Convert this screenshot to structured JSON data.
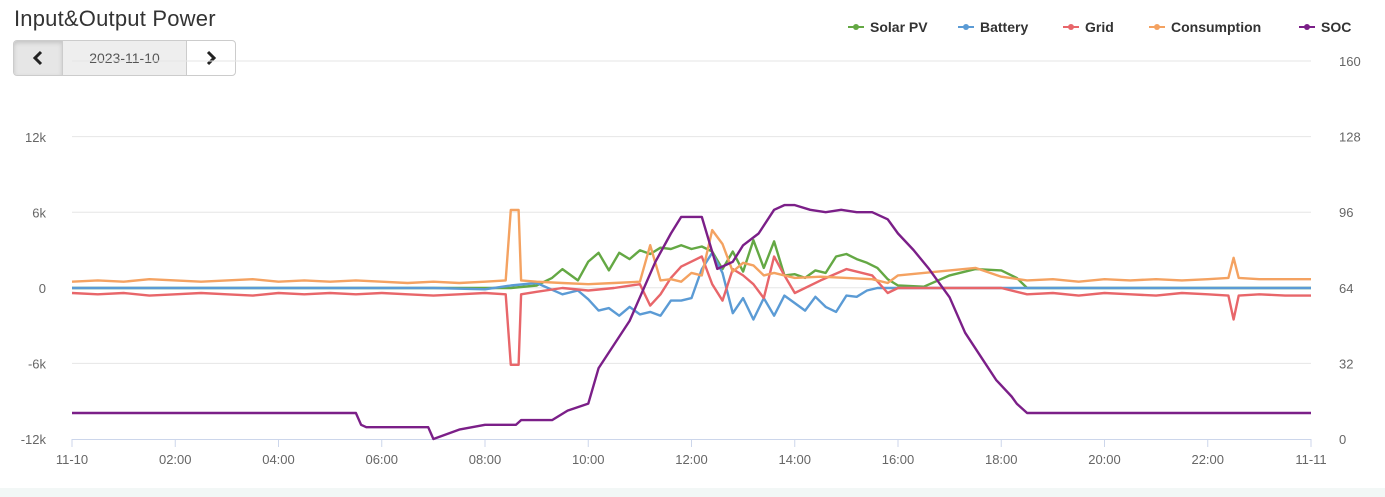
{
  "page": {
    "title": "Input&Output Power"
  },
  "date_nav": {
    "date": "2023-11-10",
    "prev_icon": "chevron-left-icon",
    "next_icon": "chevron-right-icon"
  },
  "chart_data": {
    "type": "line",
    "x_range": [
      0,
      24
    ],
    "x_ticks": [
      "11-10",
      "02:00",
      "04:00",
      "06:00",
      "08:00",
      "10:00",
      "12:00",
      "14:00",
      "16:00",
      "18:00",
      "20:00",
      "22:00",
      "11-11"
    ],
    "y_left": {
      "min": -12000,
      "max": 12000,
      "ticks": [
        -12000,
        -6000,
        0,
        6000,
        12000
      ],
      "tick_labels": [
        "-12k",
        "-6k",
        "0",
        "6k",
        "12k"
      ]
    },
    "y_right": {
      "min": 0,
      "max": 160,
      "ticks": [
        0,
        32,
        64,
        96,
        128,
        160
      ],
      "tick_labels": [
        "0",
        "32",
        "64",
        "96",
        "128",
        "160"
      ]
    },
    "grid": true,
    "legend_position": "top-right",
    "series": [
      {
        "name": "Solar PV",
        "color": "#64a844",
        "axis": "left",
        "x": [
          0,
          8.5,
          9.0,
          9.3,
          9.5,
          9.8,
          10.0,
          10.2,
          10.4,
          10.6,
          10.8,
          11.0,
          11.2,
          11.4,
          11.6,
          11.8,
          12.0,
          12.2,
          12.4,
          12.6,
          12.8,
          13.0,
          13.2,
          13.4,
          13.6,
          13.8,
          14.0,
          14.2,
          14.4,
          14.6,
          14.8,
          15.0,
          15.2,
          15.4,
          15.6,
          15.8,
          16.0,
          16.5,
          17.0,
          17.5,
          18.0,
          18.3,
          18.5,
          24
        ],
        "y": [
          0,
          0,
          200,
          800,
          1500,
          600,
          2100,
          2800,
          1400,
          2800,
          2300,
          3000,
          2700,
          3200,
          3100,
          3400,
          3100,
          3300,
          2900,
          1500,
          2900,
          1300,
          3800,
          1600,
          3700,
          1000,
          1100,
          800,
          1400,
          1200,
          2500,
          2700,
          2300,
          2000,
          1600,
          700,
          200,
          100,
          1000,
          1500,
          1400,
          800,
          0,
          0
        ]
      },
      {
        "name": "Battery",
        "color": "#5b9bd5",
        "axis": "left",
        "x": [
          0,
          7.0,
          8.0,
          8.5,
          9.0,
          9.5,
          9.8,
          10.0,
          10.2,
          10.4,
          10.6,
          10.8,
          11.0,
          11.2,
          11.4,
          11.6,
          11.8,
          12.0,
          12.2,
          12.4,
          12.6,
          12.8,
          13.0,
          13.2,
          13.4,
          13.6,
          13.8,
          14.0,
          14.2,
          14.4,
          14.6,
          14.8,
          15.0,
          15.2,
          15.4,
          15.6,
          15.8,
          16.0,
          16.5,
          17.0,
          17.5,
          18.0,
          18.3,
          18.5,
          24
        ],
        "y": [
          0,
          0,
          -100,
          200,
          400,
          -500,
          -200,
          -900,
          -1800,
          -1600,
          -2200,
          -1500,
          -2100,
          -1900,
          -2200,
          -1000,
          -1000,
          -800,
          1500,
          2800,
          1200,
          -2000,
          -800,
          -2500,
          -800,
          -2200,
          -600,
          -1200,
          -1800,
          -700,
          -1500,
          -1900,
          -600,
          -700,
          -200,
          0,
          0,
          0,
          0,
          0,
          0,
          0,
          0,
          0,
          0
        ]
      },
      {
        "name": "Grid",
        "color": "#e8666a",
        "axis": "left",
        "x": [
          0,
          0.5,
          1.0,
          1.5,
          2.0,
          2.5,
          3.0,
          3.5,
          4.0,
          4.5,
          5.0,
          5.5,
          6.0,
          6.5,
          7.0,
          7.5,
          8.0,
          8.4,
          8.5,
          8.65,
          8.7,
          9.0,
          9.5,
          10.0,
          10.5,
          11.0,
          11.2,
          11.4,
          11.6,
          11.8,
          12.0,
          12.2,
          12.4,
          12.6,
          12.8,
          13.0,
          13.2,
          13.4,
          13.6,
          13.8,
          14.0,
          14.5,
          15.0,
          15.5,
          15.8,
          16.0,
          16.5,
          17.0,
          17.5,
          18.0,
          18.5,
          19.0,
          19.5,
          20.0,
          20.5,
          21.0,
          21.5,
          22.0,
          22.4,
          22.5,
          22.6,
          23.0,
          23.5,
          24
        ],
        "y": [
          -400,
          -500,
          -400,
          -600,
          -500,
          -400,
          -500,
          -600,
          -400,
          -500,
          -400,
          -500,
          -400,
          -500,
          -600,
          -500,
          -400,
          -500,
          -6100,
          -6100,
          -500,
          -300,
          0,
          -200,
          0,
          300,
          -1400,
          -500,
          800,
          1700,
          2100,
          2500,
          300,
          -1000,
          1500,
          1000,
          300,
          -800,
          2500,
          1000,
          -400,
          600,
          1500,
          1000,
          -400,
          0,
          0,
          0,
          0,
          0,
          -500,
          -400,
          -600,
          -400,
          -500,
          -600,
          -400,
          -500,
          -600,
          -2500,
          -600,
          -500,
          -600,
          -600
        ]
      },
      {
        "name": "Consumption",
        "color": "#f4a261",
        "axis": "left",
        "x": [
          0,
          0.5,
          1.0,
          1.5,
          2.0,
          2.5,
          3.0,
          3.5,
          4.0,
          4.5,
          5.0,
          5.5,
          6.0,
          6.5,
          7.0,
          7.5,
          8.0,
          8.4,
          8.5,
          8.65,
          8.7,
          9.0,
          9.5,
          10.0,
          10.5,
          11.0,
          11.2,
          11.4,
          11.6,
          11.8,
          12.0,
          12.2,
          12.4,
          12.6,
          12.8,
          13.0,
          13.2,
          13.4,
          13.6,
          13.8,
          14.0,
          14.5,
          15.0,
          15.5,
          15.8,
          16.0,
          16.5,
          17.0,
          17.5,
          18.0,
          18.5,
          19.0,
          19.5,
          20.0,
          20.5,
          21.0,
          21.5,
          22.0,
          22.4,
          22.5,
          22.6,
          23.0,
          23.5,
          24
        ],
        "y": [
          500,
          600,
          500,
          700,
          600,
          500,
          600,
          700,
          500,
          600,
          500,
          600,
          500,
          400,
          500,
          400,
          500,
          600,
          6200,
          6200,
          600,
          500,
          400,
          300,
          400,
          500,
          3400,
          600,
          700,
          500,
          1200,
          1000,
          4600,
          3500,
          1300,
          2000,
          1800,
          1000,
          1200,
          1000,
          800,
          900,
          800,
          700,
          400,
          1000,
          1200,
          1400,
          1600,
          900,
          600,
          700,
          500,
          700,
          600,
          700,
          600,
          700,
          800,
          2400,
          800,
          700,
          700,
          700
        ]
      },
      {
        "name": "SOC",
        "color": "#7b1f88",
        "axis": "right",
        "x": [
          0,
          5.5,
          5.6,
          5.7,
          6.9,
          7.0,
          7.5,
          8.0,
          8.6,
          8.7,
          9.3,
          9.6,
          10.0,
          10.2,
          10.5,
          10.8,
          11.0,
          11.3,
          11.6,
          11.8,
          12.2,
          12.5,
          12.8,
          13.0,
          13.3,
          13.6,
          13.8,
          14.0,
          14.3,
          14.6,
          14.9,
          15.2,
          15.5,
          15.8,
          16.0,
          16.3,
          16.6,
          17.0,
          17.3,
          17.6,
          17.9,
          18.2,
          18.3,
          18.5,
          24
        ],
        "y": [
          11,
          11,
          6,
          5,
          5,
          0,
          4,
          6,
          6,
          8,
          8,
          12,
          15,
          30,
          40,
          50,
          60,
          75,
          87,
          94,
          94,
          72,
          75,
          82,
          87,
          97,
          99,
          99,
          97,
          96,
          97,
          96,
          96,
          93,
          87,
          80,
          72,
          60,
          45,
          35,
          25,
          18,
          15,
          11,
          11
        ]
      }
    ]
  }
}
